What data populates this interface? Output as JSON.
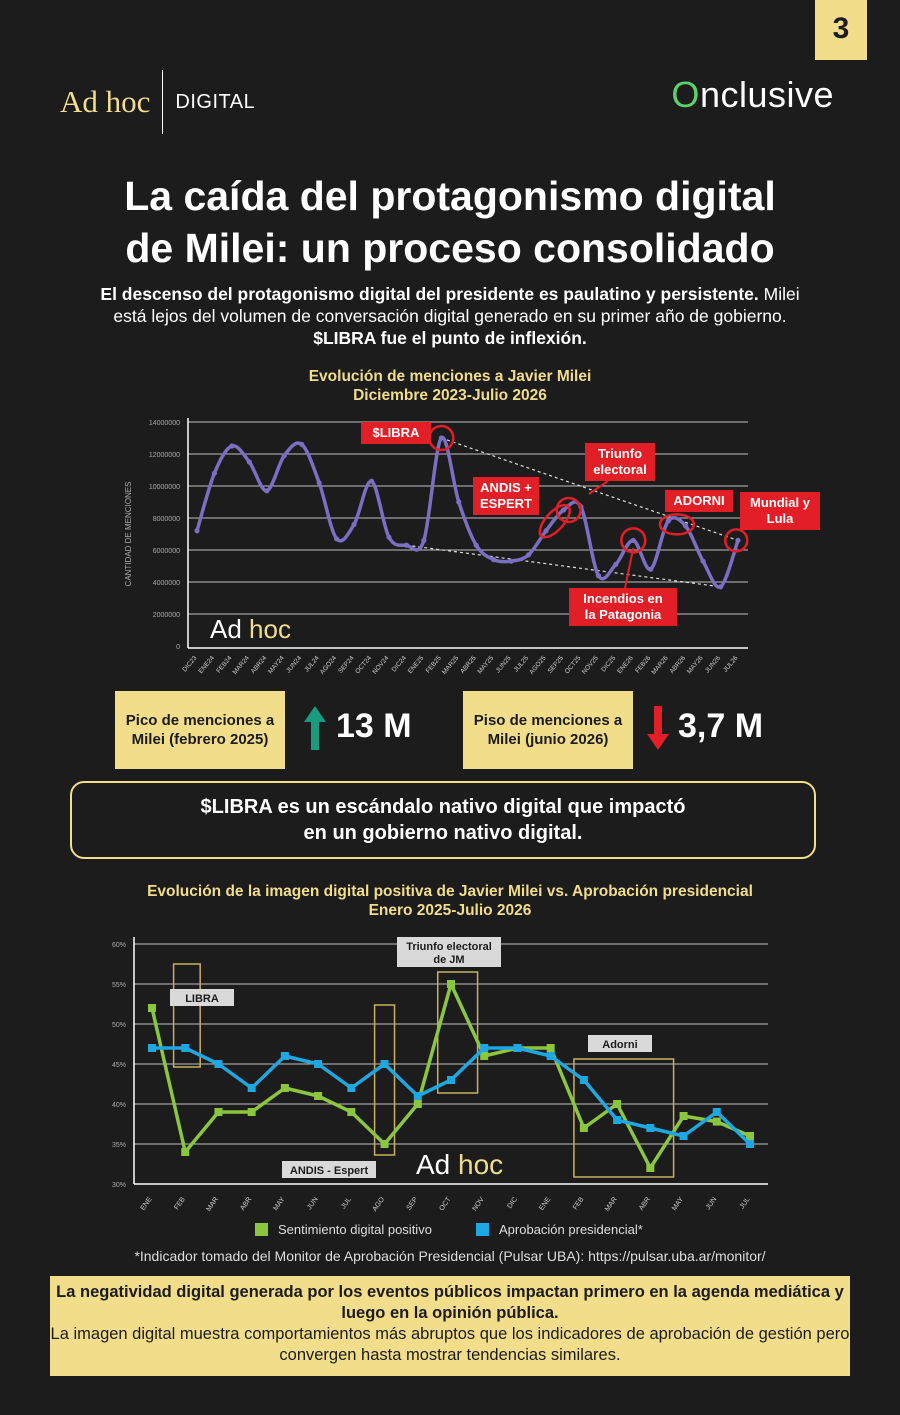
{
  "page_number": "3",
  "header": {
    "brand_main": "Ad",
    "brand_hoc": "hoc",
    "brand_sub": "DIGITAL",
    "partner": "nclusive",
    "partner_o": "O"
  },
  "title": {
    "line1": "La caída del protagonismo digital",
    "line2": "de Milei: un proceso consolidado"
  },
  "intro": {
    "bold1": "El descenso del protagonismo digital del presidente es paulatino y persistente.",
    "normal": " Milei está lejos del volumen de conversación digital generado en su primer año de gobierno. ",
    "bold2": "$LIBRA fue el punto de inflexión."
  },
  "kpis": {
    "peak_label": "Pico de menciones a Milei (febrero 2025)",
    "peak_value": "13 M",
    "floor_label": "Piso de menciones a Milei (junio 2026)",
    "floor_value": "3,7 M"
  },
  "quote": {
    "line1": "$LIBRA es un escándalo nativo digital que impactó",
    "line2": "en un gobierno nativo digital."
  },
  "footnote": "*Indicador tomado del Monitor de Aprobación Presidencial (Pulsar UBA): https://pulsar.uba.ar/monitor/",
  "bottom": {
    "bold": "La negatividad digital generada por los eventos públicos impactan primero en la agenda mediática y luego en la opinión pública.",
    "normal": "La imagen digital muestra comportamientos más abruptos que los indicadores de aprobación de gestión pero convergen hasta mostrar tendencias similares."
  },
  "colors": {
    "gold": "#f2dd8a",
    "purple": "#7b6fc4",
    "green": "#8cc63f",
    "blue": "#1ea7e1",
    "red": "#e21f26",
    "teal_arrow": "#1a9b7e",
    "background": "#1b1c1b"
  },
  "chart_data": [
    {
      "type": "line",
      "title": "Evolución de menciones a Javier Milei",
      "subtitle": "Diciembre 2023-Julio 2026",
      "ylabel": "CANTIDAD DE MENCIONES",
      "ylim": [
        0,
        14000000
      ],
      "yticks": [
        "0",
        "2000000",
        "4000000",
        "6000000",
        "8000000",
        "10000000",
        "12000000",
        "14000000"
      ],
      "watermark": "Ad hoc",
      "categories": [
        "DIC23",
        "ENE24",
        "FEB24",
        "MAR24",
        "ABR24",
        "MAY24",
        "JUN24",
        "JUL24",
        "AGO24",
        "SEP24",
        "OCT24",
        "NOV24",
        "DIC24",
        "ENE25",
        "FEB25",
        "MAR25",
        "ABR25",
        "MAY25",
        "JUN25",
        "JUL25",
        "AGO25",
        "SEP25",
        "OCT25",
        "NOV25",
        "DIC25",
        "ENE26",
        "FEB26",
        "MAR26",
        "ABR26",
        "MAY26",
        "JUN26",
        "JUL26"
      ],
      "series": [
        {
          "values": [
            7200000,
            10800000,
            12500000,
            11500000,
            9700000,
            11900000,
            12600000,
            10200000,
            6700000,
            7600000,
            10300000,
            6800000,
            6300000,
            6600000,
            13000000,
            9000000,
            6300000,
            5400000,
            5300000,
            5700000,
            7200000,
            8500000,
            8700000,
            4400000,
            5100000,
            6600000,
            4800000,
            7800000,
            7500000,
            5300000,
            3700000,
            6600000
          ]
        }
      ],
      "annotations": [
        "$LIBRA",
        "ANDIS + ESPERT",
        "Triunfo electoral",
        "ADORNI",
        "Mundial y Lula",
        "Incendios en la Patagonia"
      ]
    },
    {
      "type": "line",
      "title": "Evolución de la imagen digital positiva de Javier Milei vs. Aprobación presidencial",
      "subtitle": "Enero 2025-Julio 2026",
      "ylim": [
        30,
        60
      ],
      "yticks": [
        "30%",
        "35%",
        "40%",
        "45%",
        "50%",
        "55%",
        "60%"
      ],
      "watermark": "Ad hoc",
      "categories": [
        "ENE",
        "FEB",
        "MAR",
        "ABR",
        "MAY",
        "JUN",
        "JUL",
        "AGO",
        "SEP",
        "OCT",
        "NOV",
        "DIC",
        "ENE",
        "FEB",
        "MAR",
        "ABR",
        "MAY",
        "JUN",
        "JUL"
      ],
      "series": [
        {
          "name": "Sentimiento digital positivo",
          "values": [
            52,
            34,
            39,
            39,
            42,
            41,
            39,
            35,
            40,
            55,
            46,
            47,
            47,
            37,
            40,
            32,
            38.5,
            37.8,
            36
          ]
        },
        {
          "name": "Aprobación presidencial*",
          "values": [
            47,
            47,
            45,
            42,
            46,
            45,
            42,
            45,
            41,
            43,
            47,
            47,
            46,
            43,
            38,
            37,
            36,
            39,
            35
          ]
        }
      ],
      "annotations": [
        "LIBRA",
        "ANDIS - Espert",
        "Triunfo electoral de JM",
        "Adorni"
      ]
    }
  ]
}
